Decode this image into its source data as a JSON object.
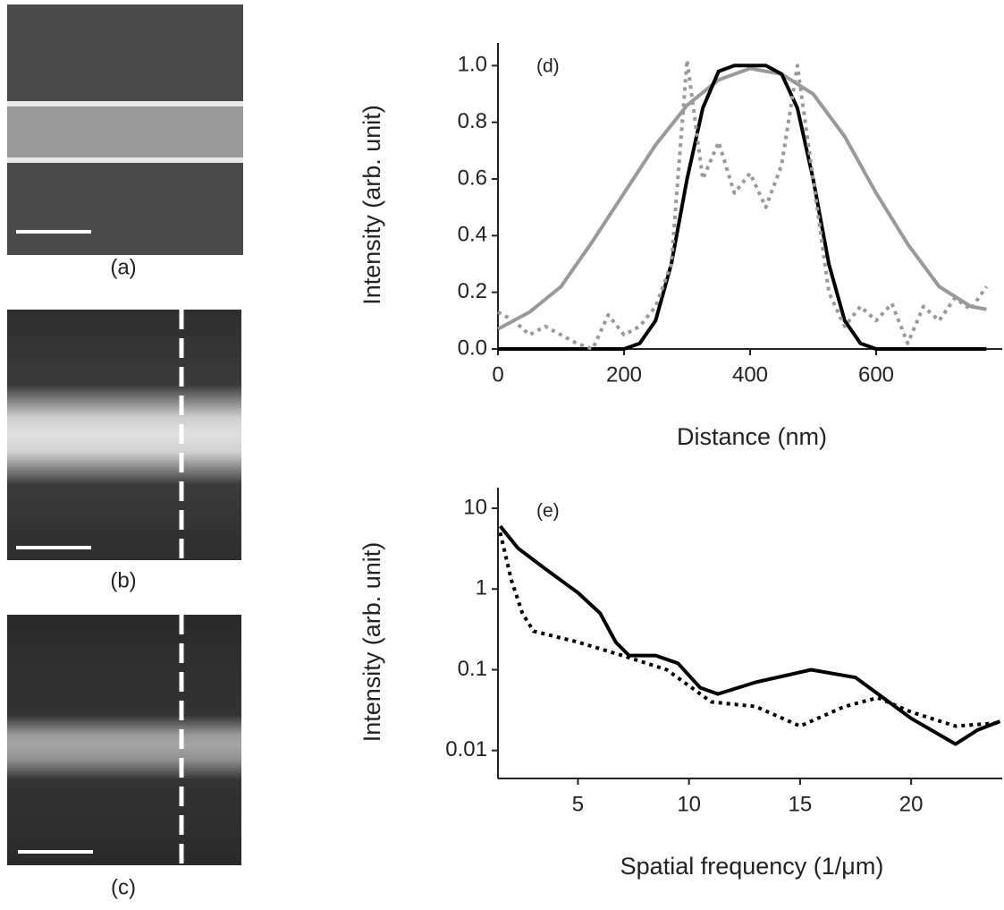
{
  "panels": [
    {
      "label": "(a)"
    },
    {
      "label": "(b)"
    },
    {
      "label": "(c)"
    }
  ],
  "chart_data": [
    {
      "type": "line",
      "annotation": "(d)",
      "xlabel": "Distance (nm)",
      "ylabel": "Intensity (arb. unit)",
      "xlim": [
        0,
        800
      ],
      "ylim": [
        0,
        1.08
      ],
      "xticks": [
        0,
        200,
        400,
        600
      ],
      "yticks": [
        {
          "value": 0,
          "label": "0.0"
        },
        0.2,
        0.4,
        0.6,
        0.8,
        {
          "value": 1,
          "label": "1.0"
        }
      ],
      "log_y": false,
      "series": [
        {
          "color": "#999999",
          "style": "solid",
          "x": [
            0,
            50,
            100,
            150,
            200,
            250,
            300,
            350,
            400,
            450,
            500,
            550,
            600,
            650,
            700,
            750,
            775
          ],
          "values": [
            0.07,
            0.13,
            0.22,
            0.38,
            0.55,
            0.72,
            0.86,
            0.95,
            0.99,
            0.97,
            0.9,
            0.75,
            0.55,
            0.37,
            0.22,
            0.15,
            0.14
          ]
        },
        {
          "color": "#000000",
          "style": "solid",
          "x": [
            0,
            200,
            225,
            250,
            275,
            300,
            325,
            350,
            375,
            400,
            425,
            450,
            475,
            500,
            525,
            550,
            575,
            600,
            775
          ],
          "values": [
            0,
            0,
            0.02,
            0.1,
            0.3,
            0.6,
            0.85,
            0.98,
            1.0,
            1.0,
            1.0,
            0.97,
            0.85,
            0.6,
            0.3,
            0.1,
            0.02,
            0,
            0
          ]
        },
        {
          "color": "#999999",
          "style": "dotted",
          "x": [
            0,
            25,
            50,
            75,
            100,
            125,
            150,
            175,
            200,
            225,
            250,
            275,
            300,
            325,
            350,
            375,
            400,
            425,
            450,
            475,
            500,
            525,
            550,
            575,
            600,
            625,
            650,
            675,
            700,
            725,
            750,
            775
          ],
          "values": [
            0.13,
            0.1,
            0.05,
            0.08,
            0.05,
            0.02,
            0.0,
            0.12,
            0.05,
            0.08,
            0.15,
            0.3,
            1.02,
            0.6,
            0.73,
            0.55,
            0.62,
            0.5,
            0.65,
            1.0,
            0.6,
            0.2,
            0.08,
            0.15,
            0.1,
            0.16,
            0.02,
            0.15,
            0.1,
            0.18,
            0.14,
            0.22
          ]
        }
      ]
    },
    {
      "type": "line",
      "annotation": "(e)",
      "xlabel": "Spatial frequency (1/μm)",
      "ylabel": "Intensity (arb. unit)",
      "xlim": [
        1.4,
        24.1
      ],
      "ylim": [
        0.0045,
        18
      ],
      "xticks": [
        5,
        10,
        15,
        20
      ],
      "yticks": [
        10,
        1,
        0.1,
        0.01
      ],
      "log_y": true,
      "series": [
        {
          "color": "#000000",
          "style": "solid",
          "x": [
            1.5,
            2.3,
            3.5,
            5,
            6,
            6.7,
            7.3,
            8.5,
            9.5,
            10.5,
            11.3,
            13,
            15.5,
            17.5,
            20,
            22,
            23,
            24
          ],
          "values": [
            6,
            3.2,
            1.8,
            0.9,
            0.5,
            0.22,
            0.15,
            0.15,
            0.12,
            0.06,
            0.05,
            0.07,
            0.1,
            0.08,
            0.025,
            0.012,
            0.018,
            0.023
          ]
        },
        {
          "color": "#000000",
          "style": "dotted",
          "x": [
            1.5,
            2,
            2.5,
            3,
            5,
            7,
            9,
            11,
            13,
            15,
            17,
            18.5,
            20,
            22,
            24
          ],
          "values": [
            5,
            1.3,
            0.5,
            0.3,
            0.22,
            0.15,
            0.1,
            0.04,
            0.035,
            0.02,
            0.035,
            0.045,
            0.03,
            0.02,
            0.022
          ]
        }
      ]
    }
  ]
}
